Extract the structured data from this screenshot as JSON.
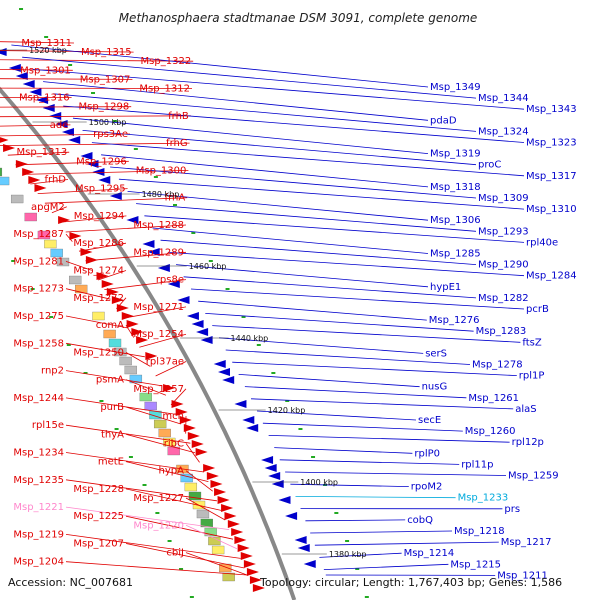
{
  "title": "Methanosphaera stadtmanae DSM 3091, complete genome",
  "footer": {
    "accession": "Accession: NC_007681",
    "summary": "Topology: circular; Length: 1,767,403 bp; Genes: 1,586"
  },
  "colors": {
    "forward": "#e00000",
    "reverse": "#0000cc",
    "trna": "#ff88cc",
    "rrna": "#00aadd",
    "backbone": "#888888",
    "tick": "#22aa22"
  },
  "scale_labels": [
    {
      "text": "1520 kbp",
      "pos": 1520
    },
    {
      "text": "1500 kbp",
      "pos": 1500
    },
    {
      "text": "1480 kbp",
      "pos": 1480
    },
    {
      "text": "1460 kbp",
      "pos": 1460
    },
    {
      "text": "1440 kbp",
      "pos": 1440
    },
    {
      "text": "1420 kbp",
      "pos": 1420
    },
    {
      "text": "1400 kbp",
      "pos": 1400
    },
    {
      "text": "1380 kbp",
      "pos": 1380
    }
  ],
  "left_labels": [
    {
      "text": "Msp_1311",
      "kind": "forward"
    },
    {
      "text": "Msp_1315",
      "kind": "forward"
    },
    {
      "text": "Msp_1322",
      "kind": "forward"
    },
    {
      "text": "Msp_1301",
      "kind": "forward"
    },
    {
      "text": "Msp_1307",
      "kind": "forward"
    },
    {
      "text": "Msp_1312",
      "kind": "forward"
    },
    {
      "text": "Msp_1316",
      "kind": "forward"
    },
    {
      "text": "Msp_1298",
      "kind": "forward"
    },
    {
      "text": "frhB",
      "kind": "forward"
    },
    {
      "text": "ade",
      "kind": "forward"
    },
    {
      "text": "rps3Ae",
      "kind": "forward"
    },
    {
      "text": "frhG",
      "kind": "forward"
    },
    {
      "text": "Msp_1313",
      "kind": "forward"
    },
    {
      "text": "Msp_1296",
      "kind": "forward"
    },
    {
      "text": "Msp_1300",
      "kind": "forward"
    },
    {
      "text": "frhD",
      "kind": "forward"
    },
    {
      "text": "Msp_1295",
      "kind": "forward"
    },
    {
      "text": "frhA",
      "kind": "forward"
    },
    {
      "text": "apgM2",
      "kind": "forward"
    },
    {
      "text": "Msp_1294",
      "kind": "forward"
    },
    {
      "text": "Msp_1288",
      "kind": "forward"
    },
    {
      "text": "Msp_1287",
      "kind": "forward"
    },
    {
      "text": "Msp_1286",
      "kind": "forward"
    },
    {
      "text": "Msp_1289",
      "kind": "forward"
    },
    {
      "text": "Msp_1281",
      "kind": "forward"
    },
    {
      "text": "Msp_1274",
      "kind": "forward"
    },
    {
      "text": "rps8e",
      "kind": "forward"
    },
    {
      "text": "Msp_1273",
      "kind": "forward"
    },
    {
      "text": "Msp_1272",
      "kind": "forward"
    },
    {
      "text": "Msp_1271",
      "kind": "forward"
    },
    {
      "text": "Msp_1275",
      "kind": "forward"
    },
    {
      "text": "comA",
      "kind": "forward"
    },
    {
      "text": "Msp_1254",
      "kind": "forward"
    },
    {
      "text": "Msp_1258",
      "kind": "forward"
    },
    {
      "text": "Msp_1250",
      "kind": "forward"
    },
    {
      "text": "rpl37ae",
      "kind": "forward"
    },
    {
      "text": "rnp2",
      "kind": "forward"
    },
    {
      "text": "psmA",
      "kind": "forward"
    },
    {
      "text": "Msp_1257",
      "kind": "forward"
    },
    {
      "text": "Msp_1244",
      "kind": "forward"
    },
    {
      "text": "purB",
      "kind": "forward"
    },
    {
      "text": "mch",
      "kind": "forward"
    },
    {
      "text": "rpl15e",
      "kind": "forward"
    },
    {
      "text": "thyA",
      "kind": "forward"
    },
    {
      "text": "ribC",
      "kind": "forward"
    },
    {
      "text": "Msp_1234",
      "kind": "forward"
    },
    {
      "text": "metE",
      "kind": "forward"
    },
    {
      "text": "hypA",
      "kind": "forward"
    },
    {
      "text": "Msp_1235",
      "kind": "forward"
    },
    {
      "text": "Msp_1228",
      "kind": "forward"
    },
    {
      "text": "Msp_1227",
      "kind": "forward"
    },
    {
      "text": "Msp_1221",
      "kind": "trna"
    },
    {
      "text": "Msp_1225",
      "kind": "forward"
    },
    {
      "text": "Msp_1220",
      "kind": "trna"
    },
    {
      "text": "Msp_1219",
      "kind": "forward"
    },
    {
      "text": "Msp_1207",
      "kind": "forward"
    },
    {
      "text": "cbiJ",
      "kind": "forward"
    },
    {
      "text": "Msp_1204",
      "kind": "forward"
    }
  ],
  "right_labels": [
    {
      "text": "Msp_1349",
      "kind": "reverse"
    },
    {
      "text": "Msp_1344",
      "kind": "reverse"
    },
    {
      "text": "Msp_1343",
      "kind": "reverse"
    },
    {
      "text": "pdaD",
      "kind": "reverse"
    },
    {
      "text": "Msp_1324",
      "kind": "reverse"
    },
    {
      "text": "Msp_1323",
      "kind": "reverse"
    },
    {
      "text": "Msp_1319",
      "kind": "reverse"
    },
    {
      "text": "proC",
      "kind": "reverse"
    },
    {
      "text": "Msp_1317",
      "kind": "reverse"
    },
    {
      "text": "Msp_1318",
      "kind": "reverse"
    },
    {
      "text": "Msp_1309",
      "kind": "reverse"
    },
    {
      "text": "Msp_1310",
      "kind": "reverse"
    },
    {
      "text": "Msp_1306",
      "kind": "reverse"
    },
    {
      "text": "Msp_1293",
      "kind": "reverse"
    },
    {
      "text": "rpl40e",
      "kind": "reverse"
    },
    {
      "text": "Msp_1285",
      "kind": "reverse"
    },
    {
      "text": "Msp_1290",
      "kind": "reverse"
    },
    {
      "text": "Msp_1284",
      "kind": "reverse"
    },
    {
      "text": "hypE1",
      "kind": "reverse"
    },
    {
      "text": "Msp_1282",
      "kind": "reverse"
    },
    {
      "text": "pcrB",
      "kind": "reverse"
    },
    {
      "text": "Msp_1276",
      "kind": "reverse"
    },
    {
      "text": "Msp_1283",
      "kind": "reverse"
    },
    {
      "text": "ftsZ",
      "kind": "reverse"
    },
    {
      "text": "serS",
      "kind": "reverse"
    },
    {
      "text": "Msp_1278",
      "kind": "reverse"
    },
    {
      "text": "rpl1P",
      "kind": "reverse"
    },
    {
      "text": "nusG",
      "kind": "reverse"
    },
    {
      "text": "Msp_1261",
      "kind": "reverse"
    },
    {
      "text": "alaS",
      "kind": "reverse"
    },
    {
      "text": "secE",
      "kind": "reverse"
    },
    {
      "text": "Msp_1260",
      "kind": "reverse"
    },
    {
      "text": "rpl12p",
      "kind": "reverse"
    },
    {
      "text": "rplP0",
      "kind": "reverse"
    },
    {
      "text": "rpl11p",
      "kind": "reverse"
    },
    {
      "text": "Msp_1259",
      "kind": "reverse"
    },
    {
      "text": "rpoM2",
      "kind": "reverse"
    },
    {
      "text": "Msp_1233",
      "kind": "rrna"
    },
    {
      "text": "prs",
      "kind": "reverse"
    },
    {
      "text": "cobQ",
      "kind": "reverse"
    },
    {
      "text": "Msp_1218",
      "kind": "reverse"
    },
    {
      "text": "Msp_1217",
      "kind": "reverse"
    },
    {
      "text": "Msp_1214",
      "kind": "reverse"
    },
    {
      "text": "Msp_1215",
      "kind": "reverse"
    },
    {
      "text": "Msp_1211",
      "kind": "reverse"
    }
  ]
}
